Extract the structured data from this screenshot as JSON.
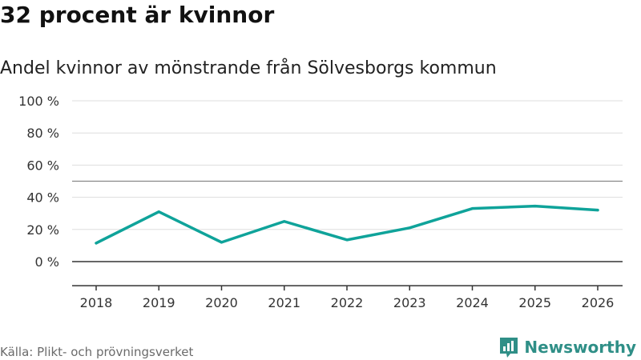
{
  "header": {
    "title": "32 procent är kvinnor",
    "subtitle": "Andel kvinnor av mönstrande från Sölvesborgs kommun"
  },
  "footer": {
    "source": "Källa: Plikt- och prövningsverket",
    "brand": "Newsworthy",
    "brand_icon": "newsworthy-logo-icon"
  },
  "colors": {
    "line": "#0fa39a",
    "grid": "#dddddd",
    "reference": "#888888",
    "axis": "#333333",
    "brand": "#2f8f87"
  },
  "chart_data": {
    "type": "line",
    "title": "32 procent är kvinnor",
    "subtitle": "Andel kvinnor av mönstrande från Sölvesborgs kommun",
    "xlabel": "",
    "ylabel": "",
    "x": [
      "2018",
      "2019",
      "2020",
      "2021",
      "2022",
      "2023",
      "2024",
      "2025",
      "2026"
    ],
    "series": [
      {
        "name": "Andel kvinnor",
        "values": [
          11.5,
          31,
          12,
          25,
          13.5,
          21,
          33,
          34.5,
          32
        ]
      }
    ],
    "ylim": [
      -15,
      100
    ],
    "yticks": [
      0,
      20,
      40,
      60,
      80,
      100
    ],
    "ytick_labels": [
      "0 %",
      "20 %",
      "40 %",
      "60 %",
      "80 %",
      "100 %"
    ],
    "reference_line": 50,
    "grid": true
  }
}
